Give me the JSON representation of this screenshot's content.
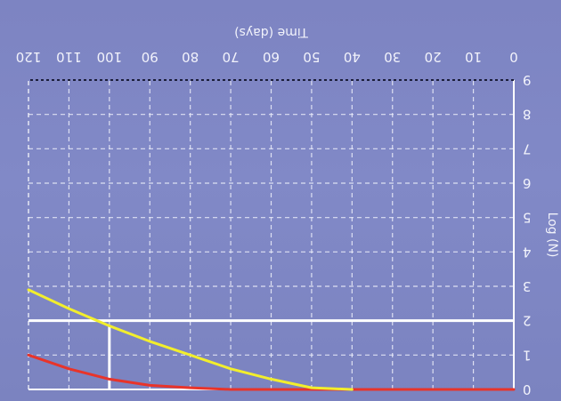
{
  "chart_data": {
    "type": "line",
    "orientation": "rotated 180 degrees",
    "xlabel": "Time (days)",
    "ylabel": "Log (N)",
    "xlim": [
      0,
      120
    ],
    "ylim": [
      0,
      9
    ],
    "x_ticks": [
      "0",
      "10",
      "20",
      "30",
      "40",
      "50",
      "60",
      "70",
      "80",
      "90",
      "100",
      "110",
      "120"
    ],
    "y_ticks": [
      "0",
      "1",
      "2",
      "3",
      "4",
      "5",
      "6",
      "7",
      "8",
      "9"
    ],
    "grid": true,
    "grid_style": "dashed",
    "series": [
      {
        "color": "#e8342a",
        "x": [
          0,
          10,
          20,
          30,
          40,
          50,
          60,
          70,
          80,
          90,
          100,
          110,
          120
        ],
        "y": [
          0,
          0,
          0,
          0,
          0,
          0,
          0,
          0,
          0.05,
          0.12,
          0.3,
          0.6,
          1.0
        ]
      },
      {
        "color": "#f2ee2c",
        "x": [
          40,
          50,
          60,
          70,
          80,
          90,
          100,
          110,
          120
        ],
        "y": [
          0,
          0.05,
          0.3,
          0.6,
          1.0,
          1.4,
          1.85,
          2.35,
          2.9
        ]
      }
    ],
    "reference_lines": [
      {
        "orientation": "horizontal",
        "y": 2,
        "color": "#ffffff"
      },
      {
        "orientation": "vertical",
        "x": 100,
        "y_range": [
          0,
          1.85
        ],
        "color": "#ffffff"
      }
    ]
  }
}
